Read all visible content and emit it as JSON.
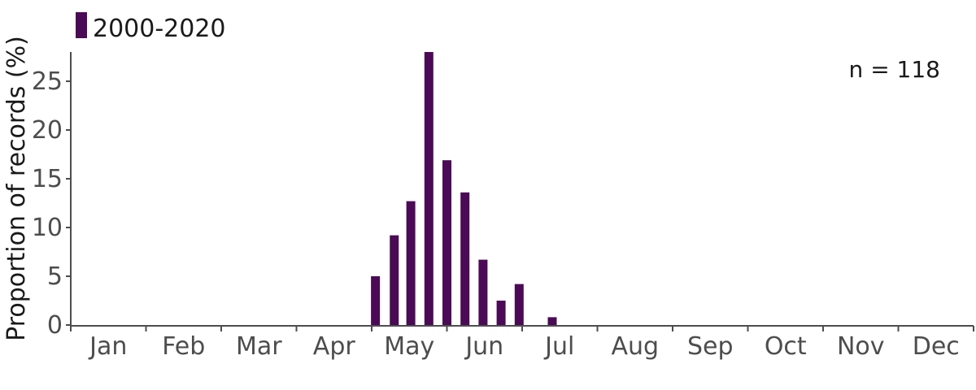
{
  "chart_data": {
    "type": "bar",
    "ylabel": "Proportion of records (%)",
    "xlabel": "",
    "ylim": [
      0,
      28
    ],
    "yticks": [
      0,
      5,
      10,
      15,
      20,
      25
    ],
    "months": [
      "Jan",
      "Feb",
      "Mar",
      "Apr",
      "May",
      "Jun",
      "Jul",
      "Aug",
      "Sep",
      "Oct",
      "Nov",
      "Dec"
    ],
    "series": [
      {
        "name": "2000-2020",
        "color": "#4b0a55",
        "bars": [
          {
            "month_position": 4.05,
            "value": 5.0
          },
          {
            "month_position": 4.3,
            "value": 9.2
          },
          {
            "month_position": 4.52,
            "value": 12.7
          },
          {
            "month_position": 4.76,
            "value": 28.0
          },
          {
            "month_position": 5.0,
            "value": 16.9
          },
          {
            "month_position": 5.24,
            "value": 13.6
          },
          {
            "month_position": 5.48,
            "value": 6.7
          },
          {
            "month_position": 5.72,
            "value": 2.5
          },
          {
            "month_position": 5.96,
            "value": 4.2
          },
          {
            "month_position": 6.4,
            "value": 0.8
          }
        ]
      }
    ],
    "legend_position": "top-left",
    "annotation": "n = 118",
    "grid": false
  }
}
